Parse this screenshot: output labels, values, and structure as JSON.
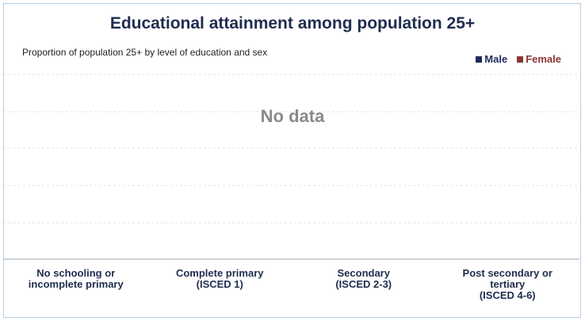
{
  "chart_data": {
    "type": "bar",
    "title": "Educational attainment among population 25+",
    "subtitle": "Proportion of population 25+ by level of education and sex",
    "annotation": "No data",
    "categories": [
      "No schooling or\nincomplete primary",
      "Complete primary\n(ISCED 1)",
      "Secondary\n(ISCED 2-3)",
      "Post secondary or\ntertiary\n(ISCED 4-6)"
    ],
    "series": [
      {
        "name": "Male",
        "color": "#1b2a5c",
        "values": [
          null,
          null,
          null,
          null
        ]
      },
      {
        "name": "Female",
        "color": "#8c3434",
        "values": [
          null,
          null,
          null,
          null
        ]
      }
    ],
    "legend": "top-right",
    "grid": true
  }
}
